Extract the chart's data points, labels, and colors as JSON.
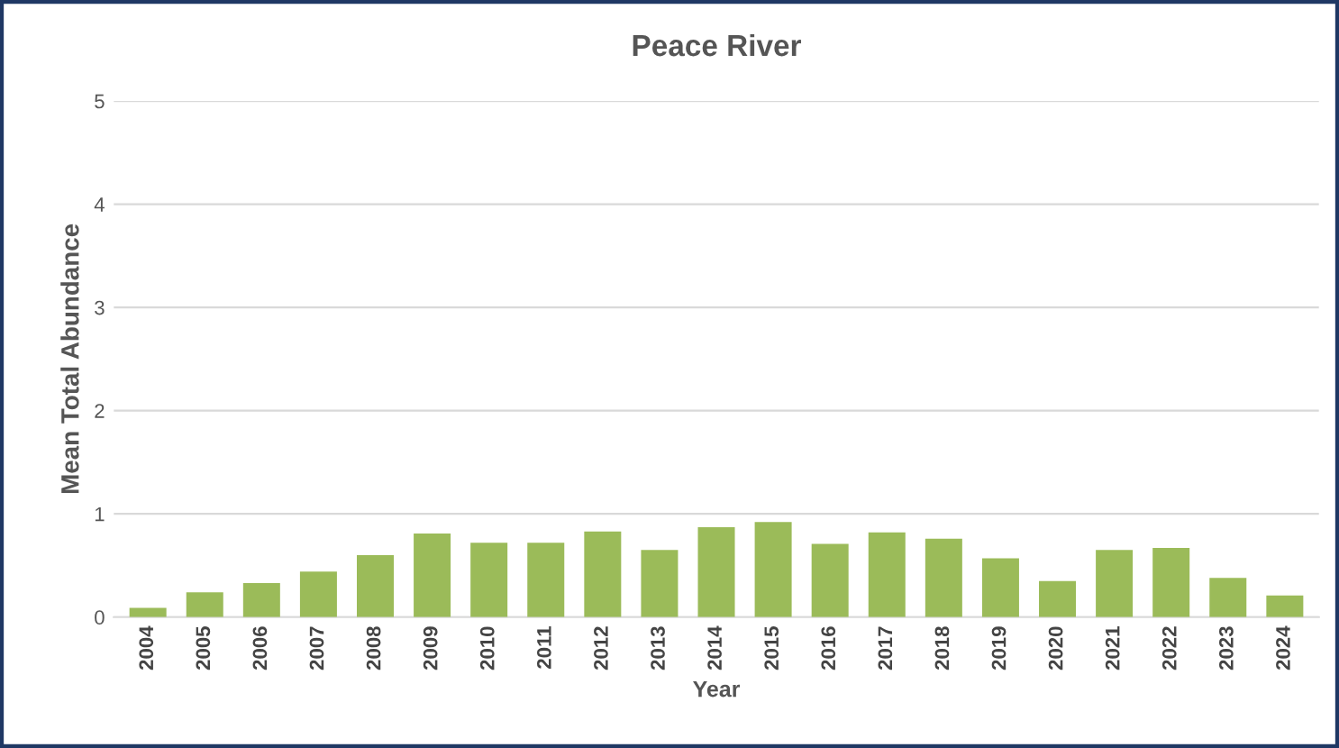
{
  "chart_data": {
    "type": "bar",
    "title": "Peace River",
    "xlabel": "Year",
    "ylabel": "Mean Total Abundance",
    "categories": [
      "2004",
      "2005",
      "2006",
      "2007",
      "2008",
      "2009",
      "2010",
      "2011",
      "2012",
      "2013",
      "2014",
      "2015",
      "2016",
      "2017",
      "2018",
      "2019",
      "2020",
      "2021",
      "2022",
      "2023",
      "2024"
    ],
    "values": [
      0.09,
      0.24,
      0.33,
      0.44,
      0.6,
      0.81,
      0.72,
      0.72,
      0.83,
      0.65,
      0.87,
      0.92,
      0.71,
      0.82,
      0.76,
      0.57,
      0.35,
      0.65,
      0.67,
      0.38,
      0.21
    ],
    "color": "#9bbb59",
    "ylim": [
      0,
      5
    ],
    "yticks": [
      0,
      1,
      2,
      3,
      4,
      5
    ],
    "grid": "y",
    "legend": false
  }
}
